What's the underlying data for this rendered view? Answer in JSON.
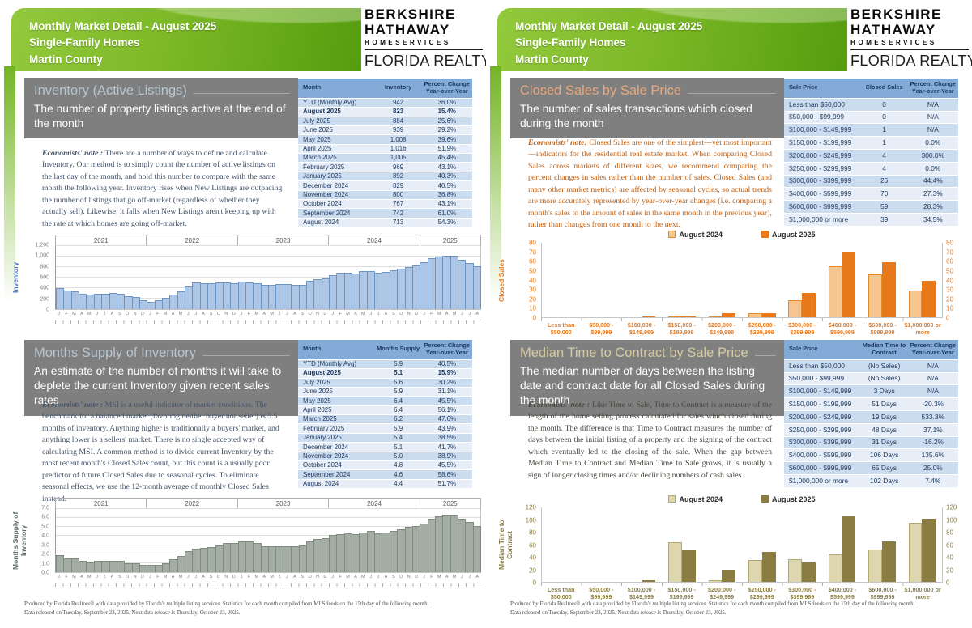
{
  "header": {
    "line1": "Monthly Market Detail - August 2025",
    "line2": "Single-Family Homes",
    "line3": "Martin County"
  },
  "logo": {
    "l1": "BERKSHIRE",
    "l2": "HATHAWAY",
    "l3": "HOMESERVICES",
    "l4": "FLORIDA REALTY"
  },
  "footer": {
    "line1": "Produced by Florida Realtors® with data provided by Florida's multiple listing services. Statistics for each month compiled from MLS feeds on the 15th day of the following month.",
    "line2": "Data released on Tuesday, September 23, 2025. Next data release is Thursday, October 23, 2025."
  },
  "pages": [
    {
      "sections": [
        {
          "title": "Inventory (Active Listings)",
          "accent": "#b7c7d1",
          "subtitle": "The number of property listings active at the end of the month",
          "note_label": "Economists' note :",
          "note_text": "There are a number of ways to define and calculate Inventory.  Our method is to simply count the number of active listings on the last day of the month, and hold this number to compare with the same month the following year.  Inventory rises when New Listings are outpacing the number of listings that go off-market (regardless of whether they actually sell).  Likewise, it falls when New Listings aren't keeping up with the rate at which homes are going off-market.",
          "note_color": "#44546a",
          "table": {
            "headers": [
              "Month",
              "Inventory",
              "Percent Change\nYear-over-Year"
            ],
            "bold_row": 1,
            "rows": [
              [
                "YTD (Monthly Avg)",
                "942",
                "36.0%"
              ],
              [
                "August 2025",
                "823",
                "15.4%"
              ],
              [
                "July 2025",
                "884",
                "25.6%"
              ],
              [
                "June 2025",
                "939",
                "29.2%"
              ],
              [
                "May 2025",
                "1,008",
                "39.6%"
              ],
              [
                "April 2025",
                "1,016",
                "51.9%"
              ],
              [
                "March 2025",
                "1,005",
                "45.4%"
              ],
              [
                "February 2025",
                "969",
                "43.1%"
              ],
              [
                "January 2025",
                "892",
                "40.3%"
              ],
              [
                "December 2024",
                "829",
                "40.5%"
              ],
              [
                "November 2024",
                "800",
                "36.8%"
              ],
              [
                "October 2024",
                "767",
                "43.1%"
              ],
              [
                "September 2024",
                "742",
                "61.0%"
              ],
              [
                "August 2024",
                "713",
                "54.3%"
              ]
            ]
          }
        },
        {
          "title": "Months Supply of Inventory",
          "accent": "#b7c7d1",
          "subtitle": "An estimate of the number of months it will take to deplete the current Inventory given recent sales rates",
          "note_label": "Economists' note :",
          "note_text": "MSI is a useful indicator of market conditions.  The benchmark for a balanced market (favoring neither buyer nor seller) is 5.5 months of inventory.  Anything higher is traditionally a buyers' market, and anything lower is a sellers' market.  There is no single accepted way of calculating MSI.  A common method is to divide current Inventory by the most recent month's Closed Sales count, but this count is a usually poor predictor of future Closed Sales due to seasonal cycles.  To eliminate seasonal effects, we use the 12-month average of monthly Closed Sales instead.",
          "note_color": "#44546a",
          "table": {
            "headers": [
              "Month",
              "Months Supply",
              "Percent Change\nYear-over-Year"
            ],
            "bold_row": 1,
            "rows": [
              [
                "YTD (Monthly Avg)",
                "5.9",
                "40.5%"
              ],
              [
                "August 2025",
                "5.1",
                "15.9%"
              ],
              [
                "July 2025",
                "5.6",
                "30.2%"
              ],
              [
                "June 2025",
                "5.9",
                "31.1%"
              ],
              [
                "May 2025",
                "6.4",
                "45.5%"
              ],
              [
                "April 2025",
                "6.4",
                "56.1%"
              ],
              [
                "March 2025",
                "6.2",
                "47.6%"
              ],
              [
                "February 2025",
                "5.9",
                "43.9%"
              ],
              [
                "January 2025",
                "5.4",
                "38.5%"
              ],
              [
                "December 2024",
                "5.1",
                "41.7%"
              ],
              [
                "November 2024",
                "5.0",
                "38.9%"
              ],
              [
                "October 2024",
                "4.8",
                "45.5%"
              ],
              [
                "September 2024",
                "4.6",
                "58.6%"
              ],
              [
                "August 2024",
                "4.4",
                "51.7%"
              ]
            ]
          }
        }
      ]
    },
    {
      "sections": [
        {
          "title": "Closed Sales by Sale Price",
          "accent": "#eba97d",
          "subtitle": "The number of sales transactions which closed during the month",
          "note_label": "Economists' note:",
          "note_text": "Closed Sales are one of the simplest—yet most important—indicators for the residential real estate market.  When comparing Closed Sales across markets of different sizes, we recommend comparing the percent changes in sales rather than the number of sales.  Closed Sales (and many other market metrics) are affected by seasonal cycles, so actual trends are more accurately represented by year-over-year changes (i.e. comparing a month's sales to the amount of sales in the same month in the previous year), rather than changes from one month to the next.",
          "note_color": "#c05f11",
          "table": {
            "headers": [
              "Sale Price",
              "Closed Sales",
              "Percent Change\nYear-over-Year"
            ],
            "bold_row": -1,
            "rows": [
              [
                "Less than $50,000",
                "0",
                "N/A"
              ],
              [
                "$50,000 - $99,999",
                "0",
                "N/A"
              ],
              [
                "$100,000 - $149,999",
                "1",
                "N/A"
              ],
              [
                "$150,000 - $199,999",
                "1",
                "0.0%"
              ],
              [
                "$200,000 - $249,999",
                "4",
                "300.0%"
              ],
              [
                "$250,000 - $299,999",
                "4",
                "0.0%"
              ],
              [
                "$300,000 - $399,999",
                "26",
                "44.4%"
              ],
              [
                "$400,000 - $599,999",
                "70",
                "27.3%"
              ],
              [
                "$600,000 - $999,999",
                "59",
                "28.3%"
              ],
              [
                "$1,000,000 or more",
                "39",
                "34.5%"
              ]
            ]
          }
        },
        {
          "title": "Median Time to Contract by Sale Price",
          "accent": "#d6cba1",
          "subtitle": "The median number of days between the listing date and contract date for all Closed Sales during the month",
          "note_label": "Economists' note :",
          "note_text": "Like Time to Sale, Time to Contract is a measure of the length of the home selling process calculated for sales which closed during the month.  The difference is that Time to Contract measures the number of days between the initial listing of a property and the signing of the contract which eventually led to the closing of the sale.  When the gap between Median Time to Contract and Median Time to Sale grows, it is usually a sign of longer closing times and/or declining numbers of cash sales.",
          "note_color": "#474740",
          "table": {
            "headers": [
              "Sale Price",
              "Median Time to\nContract",
              "Percent Change\nYear-over-Year"
            ],
            "bold_row": -1,
            "rows": [
              [
                "Less than $50,000",
                "(No Sales)",
                "N/A"
              ],
              [
                "$50,000 - $99,999",
                "(No Sales)",
                "N/A"
              ],
              [
                "$100,000 - $149,999",
                "3 Days",
                "N/A"
              ],
              [
                "$150,000 - $199,999",
                "51 Days",
                "-20.3%"
              ],
              [
                "$200,000 - $249,999",
                "19 Days",
                "533.3%"
              ],
              [
                "$250,000 - $299,999",
                "48 Days",
                "37.1%"
              ],
              [
                "$300,000 - $399,999",
                "31 Days",
                "-16.2%"
              ],
              [
                "$400,000 - $599,999",
                "106 Days",
                "135.6%"
              ],
              [
                "$600,000 - $999,999",
                "65 Days",
                "25.0%"
              ],
              [
                "$1,000,000 or more",
                "102 Days",
                "7.4%"
              ]
            ]
          }
        }
      ]
    }
  ],
  "chart_data": [
    {
      "id": "inventory-trend",
      "type": "bar",
      "title": "",
      "ylabel": "Inventory",
      "ylim": [
        0,
        1200
      ],
      "ytick_step": 200,
      "ytick_format": "comma",
      "grid": true,
      "years": [
        "2021",
        "2022",
        "2023",
        "2024",
        "2025"
      ],
      "months_per_year": [
        12,
        12,
        12,
        12,
        8
      ],
      "month_letters": [
        "J",
        "F",
        "M",
        "A",
        "M",
        "J",
        "J",
        "A",
        "S",
        "O",
        "N",
        "D"
      ],
      "values": [
        400,
        350,
        340,
        290,
        270,
        300,
        300,
        305,
        290,
        250,
        230,
        170,
        140,
        175,
        220,
        270,
        340,
        430,
        505,
        490,
        490,
        515,
        515,
        500,
        530,
        510,
        490,
        460,
        460,
        470,
        475,
        455,
        460,
        545,
        575,
        590,
        650,
        690,
        700,
        675,
        730,
        730,
        695,
        713,
        742,
        767,
        800,
        829,
        892,
        969,
        1005,
        1016,
        1008,
        939,
        884,
        823
      ],
      "bar_fill": "#adc6e6",
      "bar_border": "#6d95c2",
      "axis_color": "#4472c4"
    },
    {
      "id": "months-supply-trend",
      "type": "bar",
      "title": "",
      "ylabel": "Months Supply of\nInventory",
      "ylim": [
        0,
        7
      ],
      "ytick_step": 1,
      "ytick_format": "dec1",
      "grid": true,
      "years": [
        "2021",
        "2022",
        "2023",
        "2024",
        "2025"
      ],
      "months_per_year": [
        12,
        12,
        12,
        12,
        8
      ],
      "month_letters": [
        "J",
        "F",
        "M",
        "A",
        "M",
        "J",
        "J",
        "A",
        "S",
        "O",
        "N",
        "D"
      ],
      "values": [
        1.9,
        1.5,
        1.5,
        1.3,
        1.1,
        1.3,
        1.3,
        1.3,
        1.3,
        1.0,
        1.0,
        0.8,
        0.8,
        0.8,
        1.0,
        1.4,
        1.8,
        2.3,
        2.6,
        2.7,
        2.8,
        3.0,
        3.2,
        3.2,
        3.4,
        3.4,
        3.2,
        2.9,
        2.9,
        2.9,
        2.9,
        2.9,
        3.0,
        3.4,
        3.7,
        3.8,
        4.1,
        4.2,
        4.3,
        4.2,
        4.4,
        4.6,
        4.3,
        4.4,
        4.6,
        4.8,
        5.0,
        5.1,
        5.4,
        5.9,
        6.2,
        6.4,
        6.4,
        5.9,
        5.6,
        5.1
      ],
      "bar_fill": "#a3ada3",
      "bar_border": "#7e8c7e",
      "axis_color": "#5a6b5f"
    },
    {
      "id": "closed-sales-by-price",
      "type": "grouped-bar",
      "title": "",
      "ylabel": "Closed Sales",
      "ylim": [
        0,
        80
      ],
      "ytick_step": 10,
      "ytick_format": "int",
      "grid": false,
      "legend_position": "top",
      "categories": [
        [
          "Less than",
          "$50,000"
        ],
        [
          "$50,000 -",
          "$99,999"
        ],
        [
          "$100,000 -",
          "$149,999"
        ],
        [
          "$150,000 -",
          "$199,999"
        ],
        [
          "$200,000 -",
          "$249,999"
        ],
        [
          "$250,000 -",
          "$299,999"
        ],
        [
          "$300,000 -",
          "$399,999"
        ],
        [
          "$400,000 -",
          "$599,999"
        ],
        [
          "$600,000 -",
          "$999,999"
        ],
        [
          "$1,000,000 or",
          "more"
        ]
      ],
      "series": [
        {
          "name": "August 2024",
          "values": [
            0,
            0,
            0,
            1,
            1,
            4,
            18,
            55,
            46,
            29
          ],
          "fill": "#f5c68f",
          "border": "#e08c28"
        },
        {
          "name": "August 2025",
          "values": [
            0,
            0,
            1,
            1,
            4,
            4,
            26,
            70,
            59,
            39
          ],
          "fill": "#e8791b",
          "border": "#e8791b"
        }
      ],
      "axis_color": "#e8791b"
    },
    {
      "id": "median-time-to-contract-by-price",
      "type": "grouped-bar",
      "title": "",
      "ylabel": "Median Time to Contract",
      "ylim": [
        0,
        120
      ],
      "ytick_step": 20,
      "ytick_format": "int",
      "grid": false,
      "legend_position": "top",
      "categories": [
        [
          "Less than",
          "$50,000"
        ],
        [
          "$50,000 -",
          "$99,999"
        ],
        [
          "$100,000 -",
          "$149,999"
        ],
        [
          "$150,000 -",
          "$199,999"
        ],
        [
          "$200,000 -",
          "$249,999"
        ],
        [
          "$250,000 -",
          "$299,999"
        ],
        [
          "$300,000 -",
          "$399,999"
        ],
        [
          "$400,000 -",
          "$599,999"
        ],
        [
          "$600,000 -",
          "$999,999"
        ],
        [
          "$1,000,000 or",
          "more"
        ]
      ],
      "series": [
        {
          "name": "August 2024",
          "values": [
            0,
            0,
            0,
            64,
            3,
            35,
            37,
            45,
            52,
            95
          ],
          "fill": "#ddd6ae",
          "border": "#b3a96e"
        },
        {
          "name": "August 2025",
          "values": [
            0,
            0,
            3,
            51,
            19,
            48,
            31,
            106,
            65,
            102
          ],
          "fill": "#8b7d42",
          "border": "#8b7d42"
        }
      ],
      "axis_color": "#8b7d42"
    }
  ]
}
